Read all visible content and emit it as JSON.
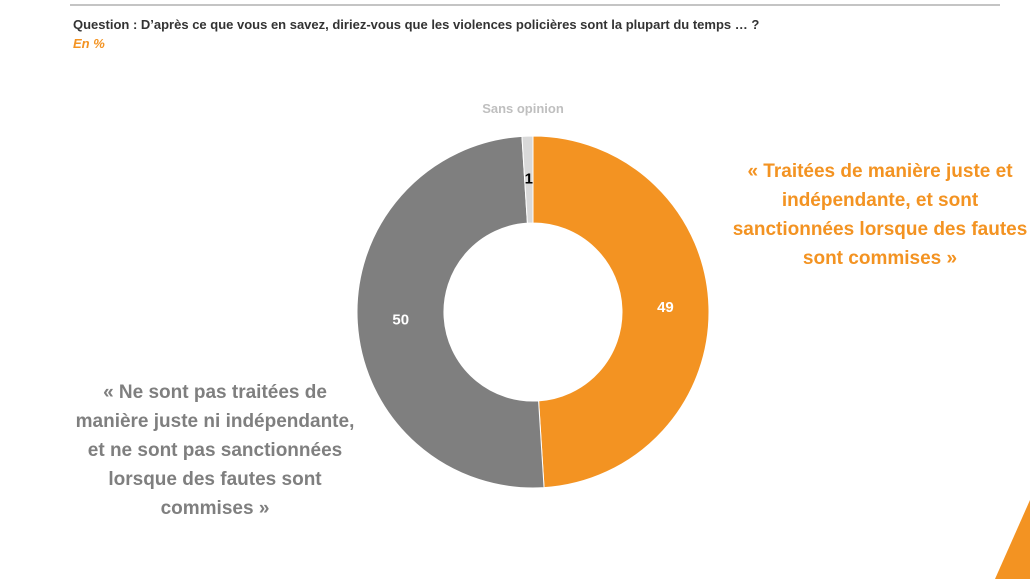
{
  "chart_data": {
    "type": "donut",
    "title": "Question : D’après ce que vous en savez, diriez-vous que les violences policières sont la plupart du temps … ?",
    "subtitle": "En %",
    "categories": [
      "« Traitées de manière juste et indépendante, et sont sanctionnées lorsque des fautes sont commises »",
      "« Ne sont pas traitées de manière juste ni indépendante, et ne sont pas sanctionnées lorsque des fautes sont commises »",
      "Sans opinion"
    ],
    "values": [
      49,
      50,
      1
    ],
    "colors": [
      "#f39322",
      "#7f7f7f",
      "#d9d9d9"
    ]
  }
}
